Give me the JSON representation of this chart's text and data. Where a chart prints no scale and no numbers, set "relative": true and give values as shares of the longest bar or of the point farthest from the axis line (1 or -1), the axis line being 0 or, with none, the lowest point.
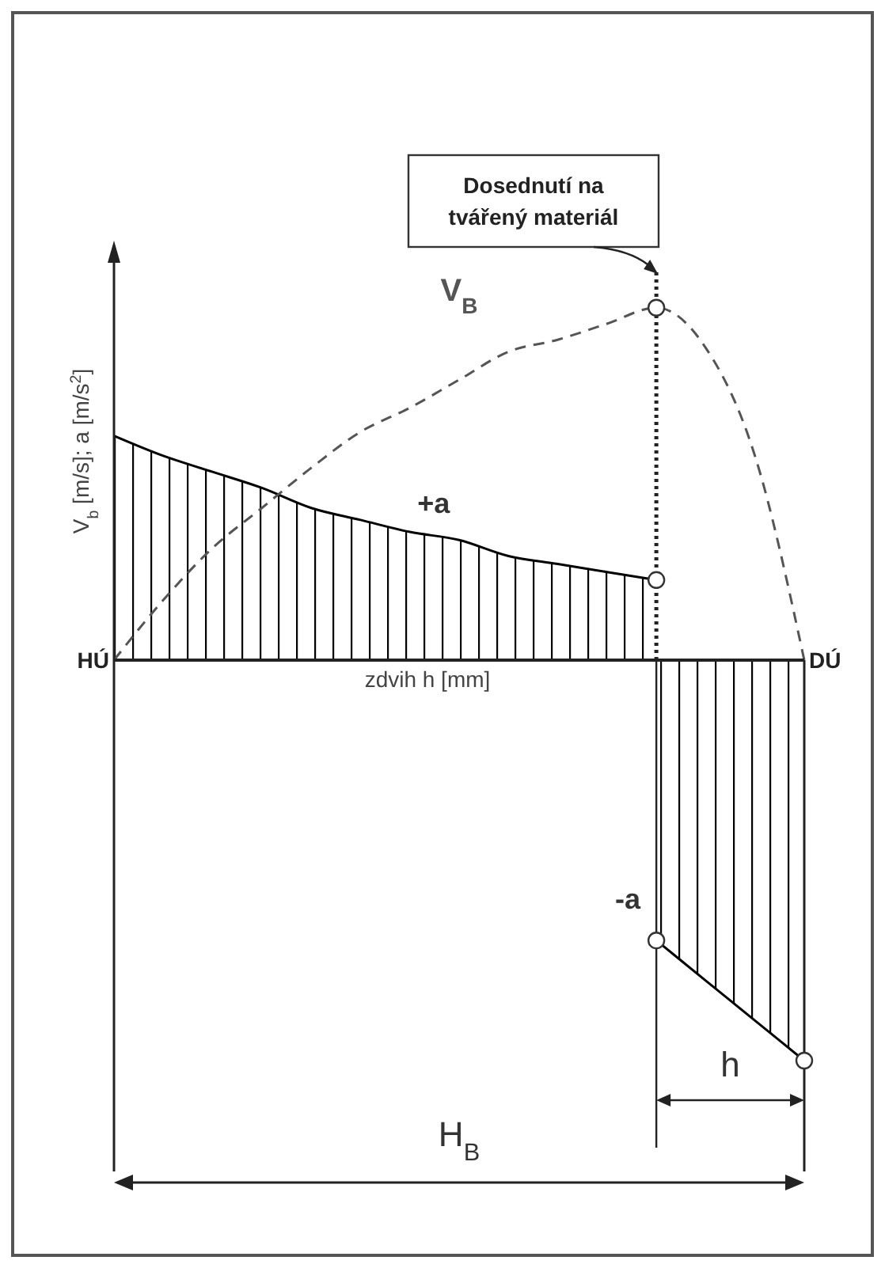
{
  "chart_data": {
    "type": "area",
    "relative": true,
    "xlabel": "zdvih h [mm]",
    "ylabel": "V$_{b}$ [m/s]; a [m/s$^{2}$]",
    "categories": [
      null,
      null,
      null,
      null,
      null,
      null,
      null,
      null,
      null,
      null,
      null,
      null,
      null,
      null,
      null
    ],
    "series": [
      {
        "name": "+a",
        "color": "#000000",
        "values": [
          0.56,
          0.51,
          0.47,
          0.43,
          0.38,
          0.35,
          0.32,
          0.3,
          0.26,
          0.24,
          0.22,
          0.2,
          null,
          null,
          null
        ]
      },
      {
        "name": "-a",
        "color": "#000000",
        "values": [
          null,
          null,
          null,
          null,
          null,
          null,
          null,
          null,
          null,
          null,
          null,
          -0.7,
          -0.8,
          -0.9,
          -1
        ]
      },
      {
        "type": "line",
        "name": "V$_{B}$",
        "color": "#555555",
        "line_style": "dashed",
        "values": [
          0,
          0.15,
          0.28,
          0.38,
          0.48,
          0.57,
          0.63,
          0.7,
          0.77,
          0.8,
          0.84,
          0.88,
          0.78,
          0.51,
          0
        ]
      }
    ],
    "annotations": [
      "Dosednutí na tvářený materiál",
      "HÚ",
      "DÚ",
      "H$_{B}$",
      "h"
    ]
  }
}
